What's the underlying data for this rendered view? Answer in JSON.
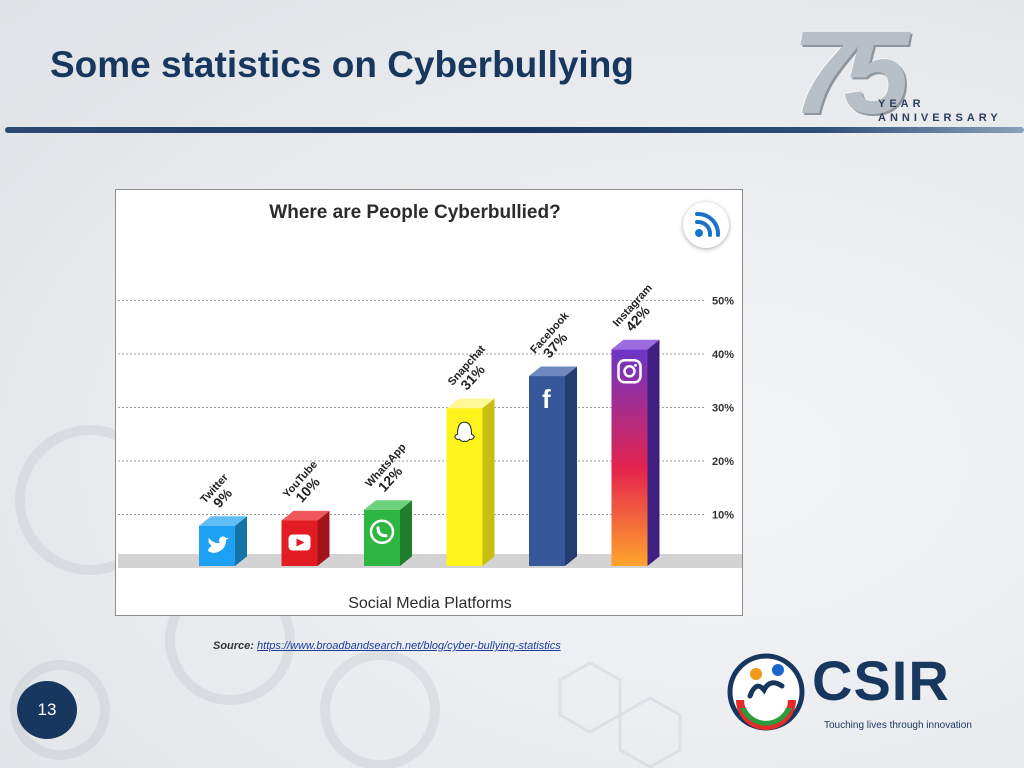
{
  "slide": {
    "title": "Some statistics on Cyberbullying",
    "page_number": "13"
  },
  "anniversary_logo": {
    "number": "75",
    "line1": "YEAR",
    "line2": "ANNIVERSARY"
  },
  "source": {
    "label": "Source:",
    "url": "https://www.broadbandsearch.net/blog/cyber-bullying-statistics"
  },
  "csir_logo": {
    "name": "CSIR",
    "tagline": "Touching lives through innovation"
  },
  "colors": {
    "title_navy": "#17375e",
    "twitter": "#1da1f2",
    "youtube": "#e31b23",
    "whatsapp": "#2db742",
    "snapchat": "#fff31c",
    "facebook": "#36589b",
    "instagram_top": "#6d35c9",
    "instagram_mid": "#e4234e",
    "instagram_bottom": "#ffa42b"
  },
  "chart_data": {
    "type": "bar",
    "title": "Where are People Cyberbullied?",
    "xlabel": "Social Media Platforms",
    "ylabel": "",
    "ylim": [
      0,
      50
    ],
    "yticks": [
      "10%",
      "20%",
      "30%",
      "40%",
      "50%"
    ],
    "ytick_values": [
      10,
      20,
      30,
      40,
      50
    ],
    "grid": true,
    "categories": [
      "Twitter",
      "YouTube",
      "WhatsApp",
      "Snapchat",
      "Facebook",
      "Instagram"
    ],
    "values": [
      9,
      10,
      12,
      31,
      37,
      42
    ],
    "value_labels": [
      "9%",
      "10%",
      "12%",
      "31%",
      "37%",
      "42%"
    ],
    "icons": [
      "twitter-bird-icon",
      "youtube-play-icon",
      "whatsapp-phone-icon",
      "snapchat-ghost-icon",
      "facebook-f-icon",
      "instagram-camera-icon"
    ],
    "badge_icon": "wifi-icon"
  }
}
